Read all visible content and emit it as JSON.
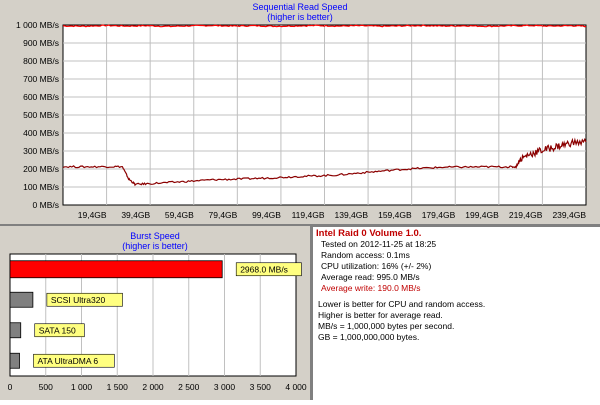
{
  "chart_data": [
    {
      "type": "line",
      "title": "Sequential Read Speed",
      "subtitle": "(higher is better)",
      "ylim": [
        0,
        1000
      ],
      "yticks": [
        "0 MB/s",
        "100 MB/s",
        "200 MB/s",
        "300 MB/s",
        "400 MB/s",
        "500 MB/s",
        "600 MB/s",
        "700 MB/s",
        "800 MB/s",
        "900 MB/s",
        "1 000 MB/s"
      ],
      "xticks": [
        "19,4GB",
        "39,4GB",
        "59,4GB",
        "79,4GB",
        "99,4GB",
        "119,4GB",
        "139,4GB",
        "159,4GB",
        "179,4GB",
        "199,4GB",
        "219,4GB",
        "239,4GB"
      ],
      "xlim": [
        0,
        247
      ],
      "grid": true,
      "series": [
        {
          "color": "#ff0000",
          "x": [
            0,
            10,
            20,
            30,
            40,
            50,
            60,
            70,
            80,
            90,
            100,
            110,
            120,
            130,
            140,
            150,
            160,
            170,
            180,
            190,
            200,
            210,
            220,
            230,
            240,
            247
          ],
          "values": [
            995,
            993,
            997,
            994,
            996,
            992,
            995,
            997,
            994,
            996,
            993,
            995,
            997,
            994,
            996,
            993,
            995,
            997,
            994,
            996,
            993,
            995,
            997,
            994,
            996,
            993
          ]
        },
        {
          "color": "#8b0000",
          "x": [
            0,
            10,
            20,
            28,
            31,
            34,
            40,
            50,
            60,
            70,
            80,
            90,
            100,
            110,
            120,
            130,
            140,
            150,
            160,
            170,
            180,
            190,
            200,
            210,
            214,
            216,
            220,
            225,
            230,
            235,
            240,
            247
          ],
          "values": [
            213,
            212,
            213,
            213,
            145,
            115,
            118,
            125,
            132,
            140,
            143,
            147,
            152,
            158,
            162,
            167,
            178,
            188,
            198,
            205,
            210,
            211,
            212,
            212,
            212,
            255,
            280,
            300,
            315,
            330,
            345,
            350
          ]
        }
      ]
    },
    {
      "type": "bar",
      "title": "Burst Speed",
      "subtitle": "(higher is better)",
      "xlim": [
        0,
        4000
      ],
      "xticks": [
        "0",
        "500",
        "1 000",
        "1 500",
        "2 000",
        "2 500",
        "3 000",
        "3 500",
        "4 000"
      ],
      "grid": true,
      "bars": [
        {
          "label": "2968.0 MB/s",
          "value": 2968,
          "color": "#ff0000"
        },
        {
          "label": "SCSI Ultra320",
          "value": 320,
          "color": "#808080"
        },
        {
          "label": "SATA 150",
          "value": 150,
          "color": "#808080"
        },
        {
          "label": "ATA UltraDMA 6",
          "value": 133,
          "color": "#808080"
        }
      ]
    }
  ],
  "info": {
    "title": "Intel Raid 0 Volume 1.0.",
    "lines": [
      "Tested on 2012-11-25 at 18:25",
      "Random access: 0.1ms",
      "CPU utilization: 16% (+/- 2%)",
      "Average read: 995.0 MB/s"
    ],
    "write_line": "Average write: 190.0 MB/s",
    "notes": [
      "Lower is better for CPU and random access.",
      "Higher is better for average read.",
      "MB/s = 1,000,000 bytes per second.",
      "GB = 1,000,000,000 bytes."
    ]
  },
  "colors": {
    "panel_bg": "#d4d0c8",
    "plot_bg": "#ffffff",
    "grid": "#c0c0c0",
    "title": "#0000ff",
    "label_box": "#ffff80",
    "info_red": "#c00000"
  }
}
